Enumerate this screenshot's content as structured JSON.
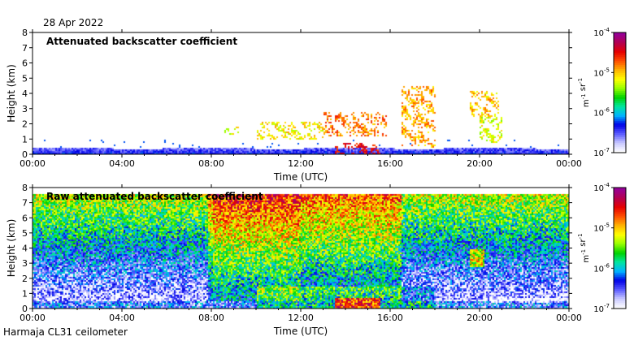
{
  "page": {
    "date": "28 Apr 2022",
    "footer": "Harmaja CL31 ceilometer"
  },
  "colors": {
    "background": "#ffffff",
    "frame": "#000000",
    "colormap": [
      "#ffffff",
      "#c8c8ff",
      "#5a5aff",
      "#0000e6",
      "#00b4ff",
      "#00e6a0",
      "#00d200",
      "#96ff00",
      "#ffff00",
      "#ffb400",
      "#ff5000",
      "#e60000",
      "#b40050",
      "#960096"
    ]
  },
  "chart_data": [
    {
      "type": "heatmap",
      "title": "Attenuated backscatter coefficient",
      "xlabel": "Time (UTC)",
      "ylabel": "Height (km)",
      "x_ticks": [
        "00:00",
        "04:00",
        "08:00",
        "12:00",
        "16:00",
        "20:00",
        "00:00"
      ],
      "x_range_hours": [
        0,
        24
      ],
      "y_ticks": [
        "0",
        "1",
        "2",
        "3",
        "4",
        "5",
        "6",
        "7",
        "8"
      ],
      "ylim": [
        0,
        8
      ],
      "colorbar": {
        "scale": "log",
        "range": [
          1e-07,
          0.0001
        ],
        "tick_labels": [
          "10-7",
          "10-6",
          "10-5",
          "10-4"
        ],
        "tick_exponents": [
          -7,
          -6,
          -5,
          -4
        ],
        "unit_label": "m-1 sr-1"
      },
      "grid": false,
      "features": [
        {
          "description": "boundary layer",
          "time_h": [
            0,
            24
          ],
          "height_km": [
            0,
            0.5
          ],
          "level_exp": -6.3
        },
        {
          "description": "cloud layer",
          "time_h": [
            8.5,
            9.2
          ],
          "height_km": [
            1.3,
            1.9
          ],
          "level_exp": -5.2
        },
        {
          "description": "cloud layer",
          "time_h": [
            10,
            13
          ],
          "height_km": [
            1.0,
            2.2
          ],
          "level_exp": -5.1
        },
        {
          "description": "cloud layer",
          "time_h": [
            13,
            15.8
          ],
          "height_km": [
            1.2,
            2.8
          ],
          "level_exp": -4.8
        },
        {
          "description": "cloud layer",
          "time_h": [
            16.5,
            18
          ],
          "height_km": [
            0.5,
            4.5
          ],
          "level_exp": -4.9
        },
        {
          "description": "cloud layer",
          "time_h": [
            19.5,
            20.8
          ],
          "height_km": [
            2.5,
            4.2
          ],
          "level_exp": -5.0
        },
        {
          "description": "cloud layer",
          "time_h": [
            20,
            21
          ],
          "height_km": [
            0.8,
            2.5
          ],
          "level_exp": -5.2
        },
        {
          "description": "low cloud",
          "time_h": [
            13.5,
            15.5
          ],
          "height_km": [
            0,
            0.8
          ],
          "level_exp": -4.5
        }
      ]
    },
    {
      "type": "heatmap",
      "title": "Raw attenuated backscatter coefficient",
      "xlabel": "Time (UTC)",
      "ylabel": "Height (km)",
      "x_ticks": [
        "00:00",
        "04:00",
        "08:00",
        "12:00",
        "16:00",
        "20:00",
        "00:00"
      ],
      "x_range_hours": [
        0,
        24
      ],
      "y_ticks": [
        "0",
        "1",
        "2",
        "3",
        "4",
        "5",
        "6",
        "7",
        "8"
      ],
      "ylim": [
        0,
        8
      ],
      "colorbar": {
        "scale": "log",
        "range": [
          1e-07,
          0.0001
        ],
        "tick_labels": [
          "10-7",
          "10-6",
          "10-5",
          "10-4"
        ],
        "tick_exponents": [
          -7,
          -6,
          -5,
          -4
        ],
        "unit_label": "m-1 sr-1"
      },
      "grid": false
    }
  ]
}
